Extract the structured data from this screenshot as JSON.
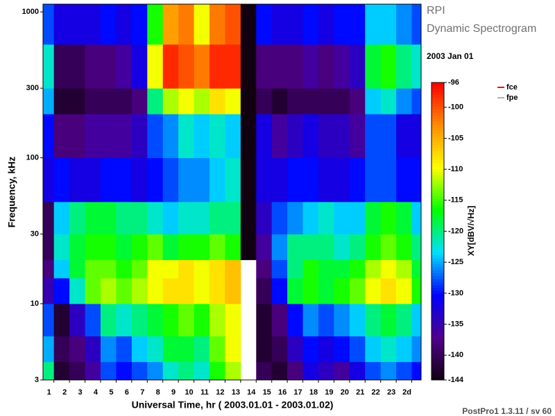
{
  "chart_data": {
    "type": "heatmap",
    "title": "RPI",
    "subtitle": "Dynamic Spectrogram",
    "date": "2003 Jan 01",
    "x_label": "Universal Time, hr ( 2003.01.01 - 2003.01.02)",
    "y_label": "Frequency, kHz",
    "colorbar_label": "XY[dBV/√Hz]",
    "footer": "PostPro1 1.3.11 / sv 60",
    "legend": [
      {
        "name": "fce",
        "color": "#ff0000"
      },
      {
        "name": "fpe",
        "color": "#b0b0b0"
      }
    ],
    "xlim": [
      0.3,
      24.6
    ],
    "xticks": [
      1,
      2,
      3,
      4,
      5,
      6,
      7,
      8,
      9,
      10,
      11,
      12,
      13,
      14,
      15,
      16,
      17,
      18,
      19,
      20,
      21,
      22,
      23,
      {
        "value": 24,
        "label": "2d",
        "color": "#00c8ff"
      }
    ],
    "ylim": [
      3,
      1130
    ],
    "yticks": [
      3,
      10,
      30,
      100,
      300,
      1000
    ],
    "log_y": true,
    "zlim": [
      -144,
      -96
    ],
    "zticks": [
      -96,
      -100,
      -105,
      -110,
      -115,
      -120,
      -125,
      -130,
      -135,
      -140,
      -144
    ],
    "colormap": [
      "#100010",
      "#50008c",
      "#0000ff",
      "#00e0ff",
      "#00ff00",
      "#ffff00",
      "#ff8c00",
      "#ff0000"
    ],
    "x_bins": [
      0.3,
      1,
      2,
      3,
      4,
      5,
      6,
      7,
      8,
      9,
      10,
      11,
      12,
      13,
      14,
      15,
      16,
      17,
      18,
      19,
      20,
      21,
      22,
      23,
      24,
      24.6
    ],
    "y_bins": [
      3,
      4,
      6,
      10,
      15,
      20,
      30,
      50,
      100,
      200,
      300,
      600,
      1130
    ],
    "values": [
      [
        -120,
        -142,
        -140,
        -136,
        -128,
        -130,
        -128,
        -126,
        -122,
        -120,
        -122,
        -116,
        -112,
        null,
        -140,
        -142,
        -138,
        -132,
        -134,
        -136,
        -132,
        -128,
        -126,
        -128,
        -130
      ],
      [
        -125,
        -140,
        -138,
        -134,
        -126,
        -128,
        -124,
        -122,
        -118,
        -118,
        -120,
        -114,
        -110,
        null,
        -142,
        -140,
        -134,
        -130,
        -132,
        -130,
        -128,
        -124,
        -122,
        -124,
        -126
      ],
      [
        -128,
        -142,
        -134,
        -128,
        -120,
        -122,
        -120,
        -118,
        -116,
        -114,
        -116,
        -112,
        -110,
        null,
        -142,
        -138,
        -130,
        -126,
        -128,
        -126,
        -124,
        -120,
        -118,
        -120,
        -124
      ],
      [
        -135,
        -130,
        -122,
        -114,
        -112,
        -114,
        -112,
        -110,
        -108,
        -108,
        -110,
        -108,
        -106,
        null,
        -140,
        -130,
        -118,
        -116,
        -118,
        -116,
        -114,
        -110,
        -108,
        -110,
        -116
      ],
      [
        -138,
        -124,
        -118,
        -114,
        -114,
        -116,
        -114,
        -110,
        -110,
        -108,
        -110,
        -108,
        -106,
        null,
        -138,
        -128,
        -120,
        -116,
        -118,
        -118,
        -116,
        -112,
        -110,
        -112,
        -118
      ],
      [
        -140,
        -122,
        -118,
        -116,
        -116,
        -118,
        -116,
        -114,
        -118,
        -116,
        -116,
        -114,
        -116,
        -144,
        -136,
        -126,
        -120,
        -120,
        -120,
        -122,
        -120,
        -116,
        -114,
        -116,
        -120
      ],
      [
        -140,
        -124,
        -120,
        -118,
        -118,
        -120,
        -120,
        -122,
        -124,
        -122,
        -122,
        -120,
        -120,
        -144,
        -134,
        -128,
        -126,
        -124,
        -122,
        -124,
        -124,
        -118,
        -116,
        -118,
        -124
      ],
      [
        -132,
        -130,
        -132,
        -132,
        -130,
        -130,
        -132,
        -130,
        -128,
        -126,
        -126,
        -124,
        -122,
        -144,
        -132,
        -132,
        -130,
        -130,
        -132,
        -132,
        -130,
        -128,
        -128,
        -130,
        -130
      ],
      [
        -130,
        -138,
        -138,
        -136,
        -136,
        -136,
        -134,
        -128,
        -126,
        -122,
        -124,
        -122,
        -124,
        -144,
        -132,
        -136,
        -134,
        -132,
        -134,
        -134,
        -136,
        -128,
        -128,
        -132,
        -132
      ],
      [
        -125,
        -142,
        -142,
        -140,
        -140,
        -140,
        -138,
        -120,
        -112,
        -110,
        -112,
        -108,
        -110,
        -144,
        -140,
        -142,
        -140,
        -140,
        -140,
        -140,
        -138,
        -124,
        -122,
        -126,
        -128
      ],
      [
        -122,
        -140,
        -140,
        -138,
        -138,
        -136,
        -132,
        -110,
        -98,
        -100,
        -102,
        -98,
        -98,
        -144,
        -138,
        -138,
        -138,
        -136,
        -138,
        -136,
        -134,
        -118,
        -116,
        -120,
        -122
      ],
      [
        -128,
        -132,
        -132,
        -132,
        -130,
        -132,
        -130,
        -116,
        -104,
        -102,
        -110,
        -102,
        -100,
        -144,
        -130,
        -132,
        -132,
        -130,
        -132,
        -130,
        -130,
        -124,
        -124,
        -126,
        -128
      ]
    ]
  }
}
